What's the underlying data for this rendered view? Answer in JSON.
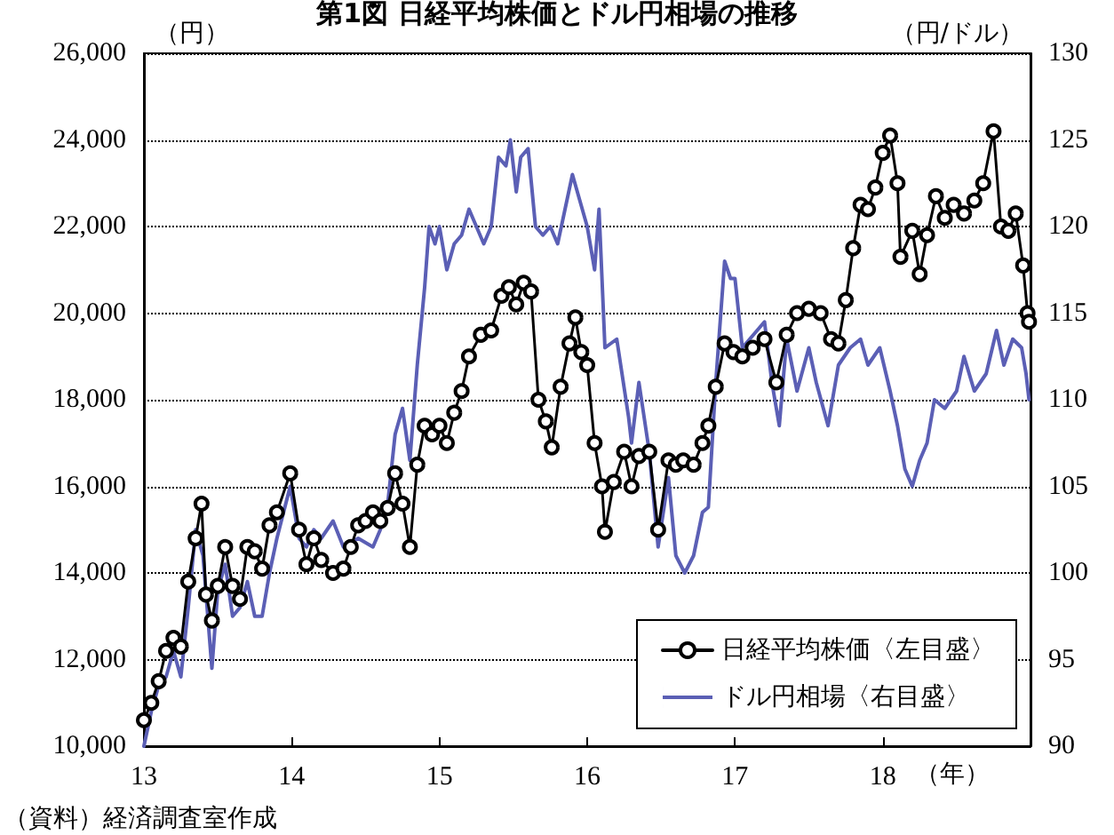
{
  "chart_data": {
    "type": "line",
    "title": "第1図 日経平均株価とドル円相場の推移",
    "ylabel": "（円）",
    "y2label": "（円/ドル）",
    "xlabel": "（年）",
    "annotations": [
      "（資料）経済調査室作成"
    ],
    "xlim": [
      2013,
      2019
    ],
    "xticks": [
      {
        "value": 2013,
        "label": "13"
      },
      {
        "value": 2014,
        "label": "14"
      },
      {
        "value": 2015,
        "label": "15"
      },
      {
        "value": 2016,
        "label": "16"
      },
      {
        "value": 2017,
        "label": "17"
      },
      {
        "value": 2018,
        "label": "18"
      }
    ],
    "ylim": [
      10000,
      26000
    ],
    "yticks": [
      {
        "value": 10000,
        "label": "10,000"
      },
      {
        "value": 12000,
        "label": "12,000"
      },
      {
        "value": 14000,
        "label": "14,000"
      },
      {
        "value": 16000,
        "label": "16,000"
      },
      {
        "value": 18000,
        "label": "18,000"
      },
      {
        "value": 20000,
        "label": "20,000"
      },
      {
        "value": 22000,
        "label": "22,000"
      },
      {
        "value": 24000,
        "label": "24,000"
      },
      {
        "value": 26000,
        "label": "26,000"
      }
    ],
    "y2lim": [
      90,
      130
    ],
    "y2ticks": [
      90,
      95,
      100,
      105,
      110,
      115,
      120,
      125,
      130
    ],
    "grid": "y",
    "legend": "bottom right",
    "series": [
      {
        "name": "日経平均株価〈左目盛〉",
        "color": "#000000",
        "marker": "circle",
        "x": [
          2013,
          2013.05,
          2013.1,
          2013.15,
          2013.2,
          2013.25,
          2013.3,
          2013.35,
          2013.39,
          2013.42,
          2013.46,
          2013.5,
          2013.55,
          2013.6,
          2013.65,
          2013.7,
          2013.75,
          2013.8,
          2013.85,
          2013.9,
          2013.99,
          2014.05,
          2014.1,
          2014.15,
          2014.2,
          2014.28,
          2014.35,
          2014.4,
          2014.45,
          2014.5,
          2014.55,
          2014.6,
          2014.65,
          2014.7,
          2014.75,
          2014.8,
          2014.85,
          2014.9,
          2014.95,
          2015,
          2015.05,
          2015.1,
          2015.15,
          2015.2,
          2015.28,
          2015.35,
          2015.42,
          2015.47,
          2015.52,
          2015.57,
          2015.62,
          2015.67,
          2015.72,
          2015.76,
          2015.82,
          2015.88,
          2015.92,
          2015.96,
          2016,
          2016.05,
          2016.1,
          2016.12,
          2016.18,
          2016.25,
          2016.3,
          2016.35,
          2016.42,
          2016.48,
          2016.55,
          2016.6,
          2016.65,
          2016.72,
          2016.78,
          2016.82,
          2016.87,
          2016.93,
          2016.99,
          2017.05,
          2017.12,
          2017.2,
          2017.28,
          2017.35,
          2017.42,
          2017.5,
          2017.58,
          2017.65,
          2017.7,
          2017.75,
          2017.8,
          2017.85,
          2017.9,
          2017.95,
          2018,
          2018.05,
          2018.1,
          2018.12,
          2018.2,
          2018.25,
          2018.3,
          2018.36,
          2018.42,
          2018.48,
          2018.55,
          2018.62,
          2018.68,
          2018.75,
          2018.8,
          2018.85,
          2018.9,
          2018.95,
          2018.98,
          2018.99
        ],
        "values": [
          10600,
          11000,
          11500,
          12200,
          12500,
          12300,
          13800,
          14800,
          15600,
          13500,
          12900,
          13700,
          14600,
          13700,
          13400,
          14600,
          14500,
          14100,
          15100,
          15400,
          16300,
          15000,
          14200,
          14800,
          14300,
          14000,
          14100,
          14600,
          15100,
          15200,
          15400,
          15200,
          15500,
          16300,
          15600,
          14600,
          16500,
          17400,
          17200,
          17400,
          17000,
          17700,
          18200,
          19000,
          19500,
          19600,
          20400,
          20600,
          20200,
          20700,
          20500,
          18000,
          17500,
          16900,
          18300,
          19300,
          19900,
          19100,
          18800,
          17000,
          16000,
          14950,
          16100,
          16800,
          16000,
          16700,
          16800,
          15000,
          16600,
          16500,
          16600,
          16500,
          17000,
          17400,
          18300,
          19300,
          19100,
          19000,
          19200,
          19400,
          18400,
          19500,
          20000,
          20100,
          20000,
          19400,
          19300,
          20300,
          21500,
          22500,
          22400,
          22900,
          23700,
          24100,
          23000,
          21300,
          21900,
          20900,
          21800,
          22700,
          22200,
          22500,
          22300,
          22600,
          23000,
          24200,
          22000,
          21900,
          22300,
          21100,
          20000,
          19800
        ]
      },
      {
        "name": "ドル円相場〈右目盛〉",
        "color": "#5b5fb5",
        "axis": "y2",
        "marker": "none",
        "x": [
          2013,
          2013.05,
          2013.1,
          2013.15,
          2013.2,
          2013.25,
          2013.3,
          2013.35,
          2013.4,
          2013.46,
          2013.5,
          2013.55,
          2013.6,
          2013.65,
          2013.7,
          2013.75,
          2013.8,
          2013.85,
          2013.9,
          2013.99,
          2014.05,
          2014.1,
          2014.15,
          2014.2,
          2014.28,
          2014.35,
          2014.45,
          2014.55,
          2014.6,
          2014.65,
          2014.7,
          2014.75,
          2014.8,
          2014.85,
          2014.9,
          2014.93,
          2014.97,
          2015,
          2015.05,
          2015.1,
          2015.15,
          2015.2,
          2015.25,
          2015.3,
          2015.35,
          2015.4,
          2015.45,
          2015.48,
          2015.52,
          2015.55,
          2015.6,
          2015.65,
          2015.7,
          2015.75,
          2015.8,
          2015.85,
          2015.9,
          2015.95,
          2016,
          2016.05,
          2016.08,
          2016.12,
          2016.2,
          2016.28,
          2016.3,
          2016.35,
          2016.42,
          2016.48,
          2016.55,
          2016.6,
          2016.66,
          2016.72,
          2016.78,
          2016.82,
          2016.87,
          2016.93,
          2016.97,
          2017,
          2017.05,
          2017.1,
          2017.2,
          2017.25,
          2017.3,
          2017.35,
          2017.42,
          2017.5,
          2017.55,
          2017.63,
          2017.7,
          2017.78,
          2017.85,
          2017.9,
          2017.98,
          2018.05,
          2018.1,
          2018.15,
          2018.2,
          2018.25,
          2018.3,
          2018.35,
          2018.42,
          2018.5,
          2018.55,
          2018.62,
          2018.7,
          2018.77,
          2018.82,
          2018.88,
          2018.94,
          2018.97,
          2018.99
        ],
        "values": [
          90,
          92,
          93.5,
          94,
          95.5,
          94,
          98,
          102.5,
          101,
          94.5,
          99,
          100.5,
          97.5,
          98,
          99.5,
          97.5,
          97.5,
          100,
          102,
          105,
          102,
          101.5,
          102.5,
          102,
          103,
          101.5,
          102,
          101.5,
          102.5,
          104,
          108,
          109.5,
          106.5,
          112,
          116.5,
          120,
          119,
          120,
          117.5,
          119,
          119.5,
          121,
          120,
          119,
          120,
          124,
          123.5,
          125,
          122,
          124,
          124.5,
          120,
          119.5,
          120,
          119,
          121,
          123,
          121.5,
          120,
          117.5,
          121,
          113,
          113.5,
          109,
          107.5,
          111,
          107,
          101.5,
          105.5,
          101,
          100,
          101,
          103.5,
          103.8,
          111,
          118,
          117,
          117,
          113,
          113.5,
          114.5,
          111,
          108.5,
          113.5,
          110.5,
          113,
          111,
          108.5,
          112,
          113,
          113.5,
          112,
          113,
          110.5,
          108.5,
          106,
          105,
          106.5,
          107.5,
          110,
          109.5,
          110.5,
          112.5,
          110.5,
          111.5,
          114,
          112,
          113.5,
          113,
          111.5,
          110
        ]
      }
    ]
  }
}
